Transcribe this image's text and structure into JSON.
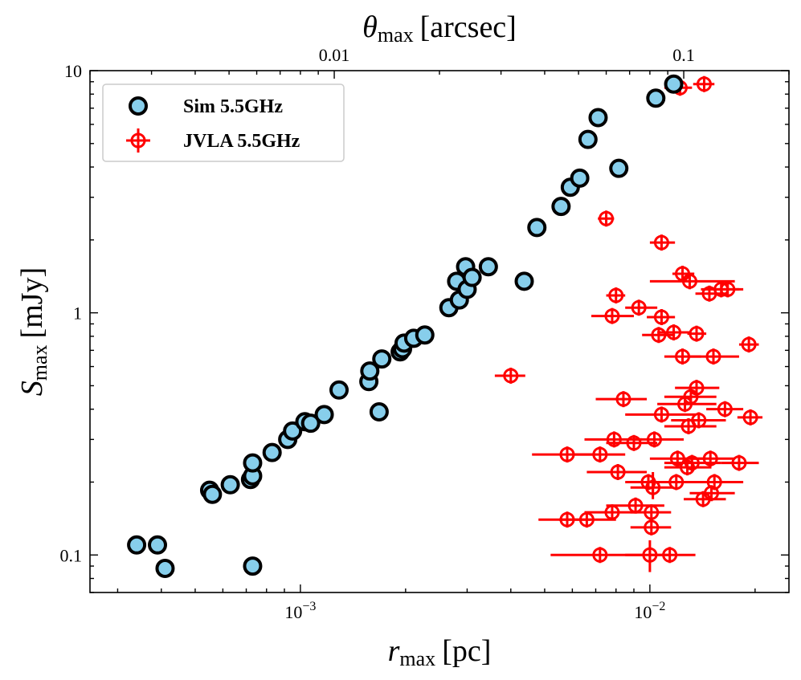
{
  "chart_data": {
    "type": "scatter",
    "xscale": "log",
    "yscale": "log",
    "xlim": [
      0.00025,
      0.025
    ],
    "ylim": [
      0.07,
      10
    ],
    "xlabel": {
      "main": "r",
      "sub": "max",
      "unit": "[pc]"
    },
    "ylabel": {
      "main": "S",
      "sub": "max",
      "unit": "[mJy]"
    },
    "top_xlabel": {
      "main": "θ",
      "sub": "max",
      "unit": "[arcsec]"
    },
    "x_ticks": [
      {
        "value": 0.001,
        "base": "10",
        "exp": "−3"
      },
      {
        "value": 0.01,
        "base": "10",
        "exp": "−2"
      }
    ],
    "y_ticks": [
      {
        "value": 0.1,
        "label": "0.1"
      },
      {
        "value": 1,
        "label": "1"
      },
      {
        "value": 10,
        "label": "10"
      }
    ],
    "top_ticks": [
      {
        "value": 0.01,
        "label": "0.01"
      },
      {
        "value": 0.1,
        "label": "0.1"
      }
    ],
    "arcsec_per_pc": 8.0,
    "legend": {
      "position": "upper-left",
      "entries": [
        "Sim 5.5GHz",
        "JVLA 5.5GHz"
      ]
    },
    "colors": {
      "sim_fill": "#87ceeb",
      "sim_edge": "#000000",
      "jvla": "#ff0000"
    },
    "series": [
      {
        "name": "Sim 5.5GHz",
        "points": [
          [
            0.00034,
            0.11
          ],
          [
            0.00039,
            0.11
          ],
          [
            0.00041,
            0.088
          ],
          [
            0.00055,
            0.185
          ],
          [
            0.00056,
            0.178
          ],
          [
            0.00063,
            0.195
          ],
          [
            0.00072,
            0.205
          ],
          [
            0.00073,
            0.212
          ],
          [
            0.00073,
            0.24
          ],
          [
            0.00073,
            0.09
          ],
          [
            0.00083,
            0.265
          ],
          [
            0.00092,
            0.3
          ],
          [
            0.00095,
            0.325
          ],
          [
            0.00103,
            0.355
          ],
          [
            0.00107,
            0.35
          ],
          [
            0.00117,
            0.38
          ],
          [
            0.00129,
            0.48
          ],
          [
            0.00157,
            0.52
          ],
          [
            0.00158,
            0.575
          ],
          [
            0.00168,
            0.39
          ],
          [
            0.00171,
            0.645
          ],
          [
            0.00193,
            0.69
          ],
          [
            0.00196,
            0.71
          ],
          [
            0.00198,
            0.75
          ],
          [
            0.00211,
            0.785
          ],
          [
            0.00227,
            0.81
          ],
          [
            0.00266,
            1.05
          ],
          [
            0.0028,
            1.35
          ],
          [
            0.00285,
            1.13
          ],
          [
            0.00297,
            1.55
          ],
          [
            0.003,
            1.25
          ],
          [
            0.0031,
            1.4
          ],
          [
            0.00345,
            1.55
          ],
          [
            0.00437,
            1.35
          ],
          [
            0.00475,
            2.25
          ],
          [
            0.00557,
            2.75
          ],
          [
            0.00592,
            3.3
          ],
          [
            0.0063,
            3.6
          ],
          [
            0.00665,
            5.2
          ],
          [
            0.00711,
            6.4
          ],
          [
            0.00815,
            3.95
          ],
          [
            0.0104,
            7.7
          ],
          [
            0.0117,
            8.8
          ]
        ]
      },
      {
        "name": "JVLA 5.5GHz",
        "points": [
          [
            0.0122,
            8.5,
            0.011,
            0.0132
          ],
          [
            0.0143,
            8.8,
            0.0133,
            0.0153
          ],
          [
            0.0075,
            2.45,
            0.0071,
            0.0079
          ],
          [
            0.0108,
            1.95,
            0.01,
            0.0118
          ],
          [
            0.0124,
            1.45,
            0.0116,
            0.0134
          ],
          [
            0.013,
            1.35,
            0.01,
            0.0175
          ],
          [
            0.016,
            1.25,
            0.014,
            0.0185
          ],
          [
            0.0167,
            1.25,
            0.0155,
            0.018
          ],
          [
            0.008,
            1.18,
            0.0075,
            0.0085
          ],
          [
            0.0148,
            1.2,
            0.0135,
            0.0165
          ],
          [
            0.0093,
            1.05,
            0.0085,
            0.0105
          ],
          [
            0.0078,
            0.97,
            0.0068,
            0.009
          ],
          [
            0.0108,
            0.96,
            0.0098,
            0.0118
          ],
          [
            0.0117,
            0.83,
            0.0105,
            0.013
          ],
          [
            0.0136,
            0.82,
            0.0128,
            0.0145
          ],
          [
            0.0106,
            0.81,
            0.0095,
            0.0118
          ],
          [
            0.0192,
            0.74,
            0.018,
            0.0205
          ],
          [
            0.0124,
            0.66,
            0.011,
            0.014
          ],
          [
            0.0152,
            0.66,
            0.013,
            0.018
          ],
          [
            0.004,
            0.55,
            0.0036,
            0.0044
          ],
          [
            0.0136,
            0.49,
            0.0118,
            0.0158
          ],
          [
            0.0084,
            0.44,
            0.007,
            0.0098
          ],
          [
            0.0131,
            0.45,
            0.011,
            0.0155
          ],
          [
            0.0126,
            0.42,
            0.0105,
            0.0155
          ],
          [
            0.0164,
            0.4,
            0.0145,
            0.0185
          ],
          [
            0.0108,
            0.38,
            0.0085,
            0.0135
          ],
          [
            0.0138,
            0.36,
            0.0115,
            0.0165
          ],
          [
            0.0194,
            0.37,
            0.0178,
            0.021
          ],
          [
            0.0129,
            0.34,
            0.011,
            0.0155
          ],
          [
            0.0079,
            0.3,
            0.0065,
            0.0095
          ],
          [
            0.009,
            0.29,
            0.0075,
            0.0105
          ],
          [
            0.0103,
            0.3,
            0.009,
            0.0125
          ],
          [
            0.0058,
            0.26,
            0.0046,
            0.007
          ],
          [
            0.0072,
            0.26,
            0.006,
            0.0085
          ],
          [
            0.012,
            0.25,
            0.01,
            0.0145
          ],
          [
            0.0132,
            0.24,
            0.011,
            0.016
          ],
          [
            0.0149,
            0.25,
            0.013,
            0.0175
          ],
          [
            0.018,
            0.24,
            0.016,
            0.0205
          ],
          [
            0.0081,
            0.22,
            0.0066,
            0.0098
          ],
          [
            0.0128,
            0.23,
            0.011,
            0.015
          ],
          [
            0.0099,
            0.2,
            0.0085,
            0.0115
          ],
          [
            0.0102,
            0.19,
            0.0088,
            0.0117
          ],
          [
            0.0119,
            0.2,
            0.01,
            0.014
          ],
          [
            0.0153,
            0.2,
            0.013,
            0.0185
          ],
          [
            0.015,
            0.18,
            0.013,
            0.0175
          ],
          [
            0.0142,
            0.17,
            0.0125,
            0.0165
          ],
          [
            0.0091,
            0.16,
            0.0075,
            0.011
          ],
          [
            0.0078,
            0.15,
            0.0065,
            0.0092
          ],
          [
            0.0058,
            0.14,
            0.0048,
            0.0068
          ],
          [
            0.0066,
            0.14,
            0.0055,
            0.008
          ],
          [
            0.0101,
            0.15,
            0.0088,
            0.0115
          ],
          [
            0.0101,
            0.13,
            0.0088,
            0.0115
          ],
          [
            0.0072,
            0.1,
            0.0052,
            0.0095
          ],
          [
            0.01,
            0.1,
            0.0085,
            0.0115
          ],
          [
            0.0114,
            0.1,
            0.01,
            0.0135
          ]
        ],
        "y_err": [
          [
            0.0102,
            0.19,
            0.17,
            0.22
          ],
          [
            0.01,
            0.1,
            0.085,
            0.115
          ]
        ]
      }
    ]
  }
}
